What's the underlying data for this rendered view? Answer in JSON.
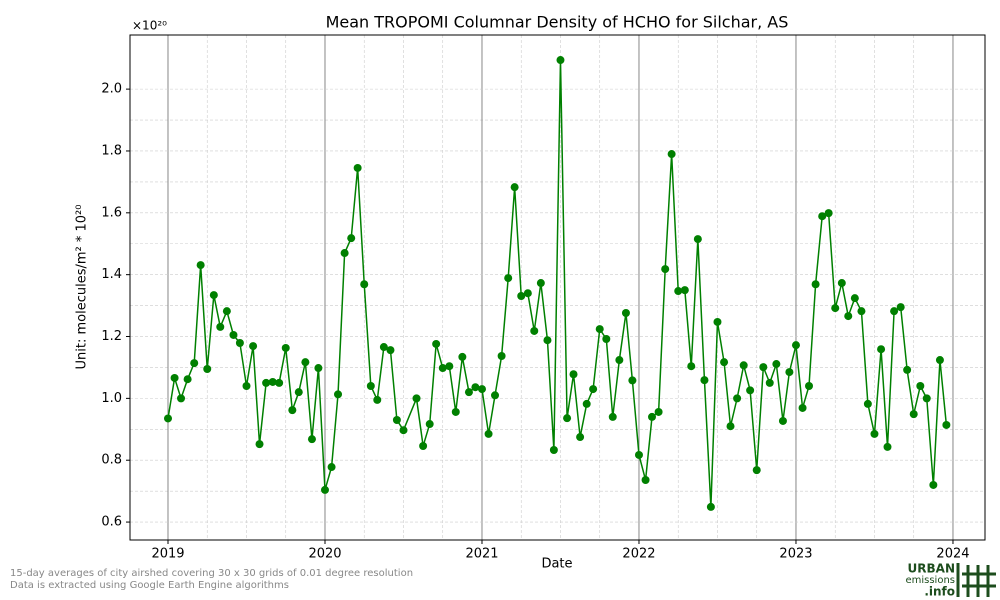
{
  "chart_data": {
    "type": "line",
    "title": "Mean TROPOMI Columnar Density of HCHO for Silchar, AS",
    "x_label": "Date",
    "y_label": "Unit: molecules/m² * 10²⁰",
    "y_offset_label": "×10²⁰",
    "footnotes": [
      "15-day averages of city airshed covering 30 x 30 grids of 0.01 degree resolution",
      "Data is extracted using Google Earth Engine algorithms"
    ],
    "logo": {
      "line1": "URBAN",
      "line2": "emissions",
      "line3": ".info"
    },
    "grid": true,
    "color": "#008000",
    "xlim": [
      2018.758,
      2024.204
    ],
    "ylim": [
      0.542,
      2.175
    ],
    "xticks": [
      2019,
      2020,
      2021,
      2022,
      2023,
      2024
    ],
    "yticks": [
      0.6,
      0.8,
      {
        "value": 1.0,
        "label": "1.0"
      },
      1.2,
      1.4,
      1.6,
      1.8,
      {
        "value": 2.0,
        "label": "2.0"
      }
    ],
    "x": [
      2019,
      2019.042,
      2019.083,
      2019.125,
      2019.167,
      2019.208,
      2019.25,
      2019.292,
      2019.333,
      2019.375,
      2019.417,
      2019.458,
      2019.5,
      2019.542,
      2019.583,
      2019.625,
      2019.667,
      2019.708,
      2019.75,
      2019.792,
      2019.833,
      2019.875,
      2019.917,
      2019.958,
      2020,
      2020.042,
      2020.083,
      2020.125,
      2020.167,
      2020.208,
      2020.25,
      2020.292,
      2020.333,
      2020.375,
      2020.417,
      2020.458,
      2020.5,
      2020.583,
      2020.625,
      2020.667,
      2020.708,
      2020.75,
      2020.792,
      2020.833,
      2020.875,
      2020.917,
      2020.958,
      2021,
      2021.042,
      2021.083,
      2021.125,
      2021.167,
      2021.208,
      2021.25,
      2021.292,
      2021.333,
      2021.375,
      2021.417,
      2021.458,
      2021.5,
      2021.542,
      2021.583,
      2021.625,
      2021.667,
      2021.708,
      2021.75,
      2021.792,
      2021.833,
      2021.875,
      2021.917,
      2021.958,
      2022,
      2022.042,
      2022.083,
      2022.125,
      2022.167,
      2022.208,
      2022.25,
      2022.292,
      2022.333,
      2022.375,
      2022.417,
      2022.458,
      2022.5,
      2022.542,
      2022.583,
      2022.625,
      2022.667,
      2022.708,
      2022.75,
      2022.792,
      2022.833,
      2022.875,
      2022.917,
      2022.958,
      2023,
      2023.042,
      2023.083,
      2023.125,
      2023.167,
      2023.208,
      2023.25,
      2023.292,
      2023.333,
      2023.375,
      2023.417,
      2023.458,
      2023.5,
      2023.542,
      2023.583,
      2023.625,
      2023.667,
      2023.708,
      2023.75,
      2023.792,
      2023.833,
      2023.875,
      2023.917,
      2023.958
    ],
    "values": [
      0.935,
      1.066,
      1.0,
      1.062,
      1.114,
      1.431,
      1.095,
      1.334,
      1.231,
      1.282,
      1.205,
      1.179,
      1.04,
      1.169,
      0.852,
      1.05,
      1.053,
      1.05,
      1.163,
      0.962,
      1.02,
      1.117,
      0.868,
      1.098,
      0.704,
      0.778,
      1.013,
      1.47,
      1.518,
      1.745,
      1.369,
      1.04,
      0.995,
      1.166,
      1.156,
      0.93,
      0.897,
      1.0,
      0.846,
      0.917,
      1.176,
      1.098,
      1.104,
      0.956,
      1.134,
      1.02,
      1.036,
      1.03,
      0.885,
      1.01,
      1.137,
      1.389,
      1.683,
      1.331,
      1.34,
      1.218,
      1.373,
      1.188,
      0.833,
      2.094,
      0.936,
      1.078,
      0.875,
      0.982,
      1.03,
      1.224,
      1.192,
      0.94,
      1.124,
      1.276,
      1.058,
      0.817,
      0.736,
      0.94,
      0.956,
      1.418,
      1.79,
      1.347,
      1.35,
      1.104,
      1.515,
      1.059,
      0.649,
      1.247,
      1.117,
      0.91,
      1.0,
      1.107,
      1.026,
      0.768,
      1.101,
      1.05,
      1.111,
      0.927,
      1.085,
      1.172,
      0.969,
      1.04,
      1.369,
      1.589,
      1.599,
      1.292,
      1.373,
      1.266,
      1.324,
      1.282,
      0.982,
      0.885,
      1.159,
      0.843,
      1.282,
      1.295,
      1.092,
      0.949,
      1.04,
      1.0,
      0.72,
      1.124,
      0.914
    ]
  }
}
